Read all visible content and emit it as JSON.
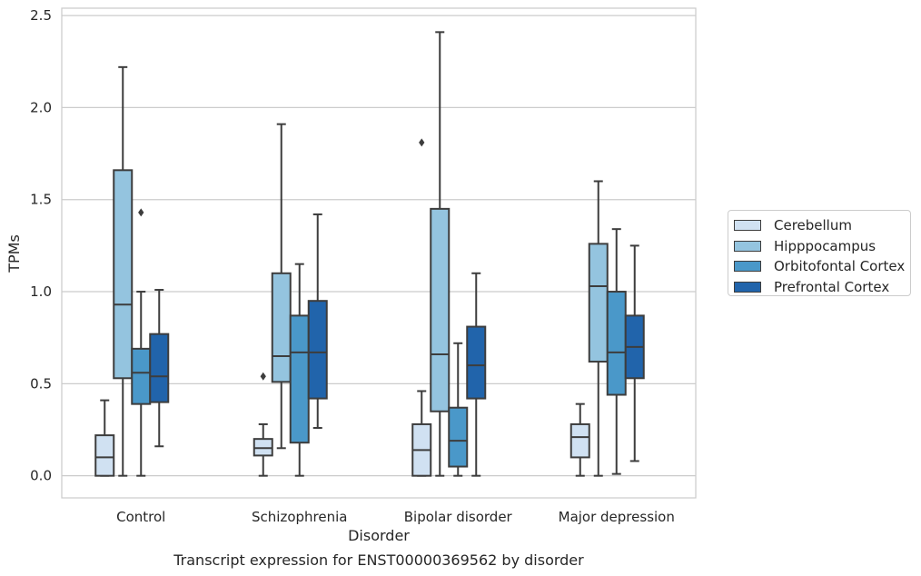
{
  "chart_data": {
    "type": "boxplot",
    "title": "Transcript expression for ENST00000369562 by disorder",
    "xlabel": "Disorder",
    "ylabel": "TPMs",
    "ylim": [
      -0.12,
      2.54
    ],
    "yticks": [
      "0.0",
      "0.5",
      "1.0",
      "1.5",
      "2.0",
      "2.5"
    ],
    "ytick_values": [
      0,
      0.5,
      1.0,
      1.5,
      2.0,
      2.5
    ],
    "categories": [
      "Control",
      "Schizophrenia",
      "Bipolar disorder",
      "Major depression"
    ],
    "grid": true,
    "legend_position": "right",
    "series": [
      {
        "name": "Cerebellum",
        "color": "#d0e1f2",
        "boxes": [
          {
            "whislo": 0.0,
            "q1": 0.0,
            "med": 0.1,
            "q3": 0.22,
            "whishi": 0.41,
            "fliers": []
          },
          {
            "whislo": 0.0,
            "q1": 0.11,
            "med": 0.15,
            "q3": 0.2,
            "whishi": 0.28,
            "fliers": [
              0.54
            ]
          },
          {
            "whislo": 0.0,
            "q1": 0.0,
            "med": 0.14,
            "q3": 0.28,
            "whishi": 0.46,
            "fliers": [
              1.81
            ]
          },
          {
            "whislo": 0.0,
            "q1": 0.1,
            "med": 0.21,
            "q3": 0.28,
            "whishi": 0.39,
            "fliers": []
          }
        ]
      },
      {
        "name": "Hipppocampus",
        "color": "#94c4df",
        "boxes": [
          {
            "whislo": 0.0,
            "q1": 0.53,
            "med": 0.93,
            "q3": 1.66,
            "whishi": 2.22,
            "fliers": []
          },
          {
            "whislo": 0.15,
            "q1": 0.51,
            "med": 0.65,
            "q3": 1.1,
            "whishi": 1.91,
            "fliers": []
          },
          {
            "whislo": 0.0,
            "q1": 0.35,
            "med": 0.66,
            "q3": 1.45,
            "whishi": 2.41,
            "fliers": []
          },
          {
            "whislo": 0.0,
            "q1": 0.62,
            "med": 1.03,
            "q3": 1.26,
            "whishi": 1.6,
            "fliers": []
          }
        ]
      },
      {
        "name": "Orbitofontal Cortex",
        "color": "#4a98c9",
        "boxes": [
          {
            "whislo": 0.0,
            "q1": 0.39,
            "med": 0.56,
            "q3": 0.69,
            "whishi": 1.0,
            "fliers": [
              1.43
            ]
          },
          {
            "whislo": 0.0,
            "q1": 0.18,
            "med": 0.67,
            "q3": 0.87,
            "whishi": 1.15,
            "fliers": []
          },
          {
            "whislo": 0.0,
            "q1": 0.05,
            "med": 0.19,
            "q3": 0.37,
            "whishi": 0.72,
            "fliers": []
          },
          {
            "whislo": 0.01,
            "q1": 0.44,
            "med": 0.67,
            "q3": 1.0,
            "whishi": 1.34,
            "fliers": []
          }
        ]
      },
      {
        "name": "Prefrontal Cortex",
        "color": "#2164ab",
        "boxes": [
          {
            "whislo": 0.16,
            "q1": 0.4,
            "med": 0.54,
            "q3": 0.77,
            "whishi": 1.01,
            "fliers": []
          },
          {
            "whislo": 0.26,
            "q1": 0.42,
            "med": 0.67,
            "q3": 0.95,
            "whishi": 1.42,
            "fliers": []
          },
          {
            "whislo": 0.0,
            "q1": 0.42,
            "med": 0.6,
            "q3": 0.81,
            "whishi": 1.1,
            "fliers": []
          },
          {
            "whislo": 0.08,
            "q1": 0.53,
            "med": 0.7,
            "q3": 0.87,
            "whishi": 1.25,
            "fliers": []
          }
        ]
      }
    ]
  }
}
